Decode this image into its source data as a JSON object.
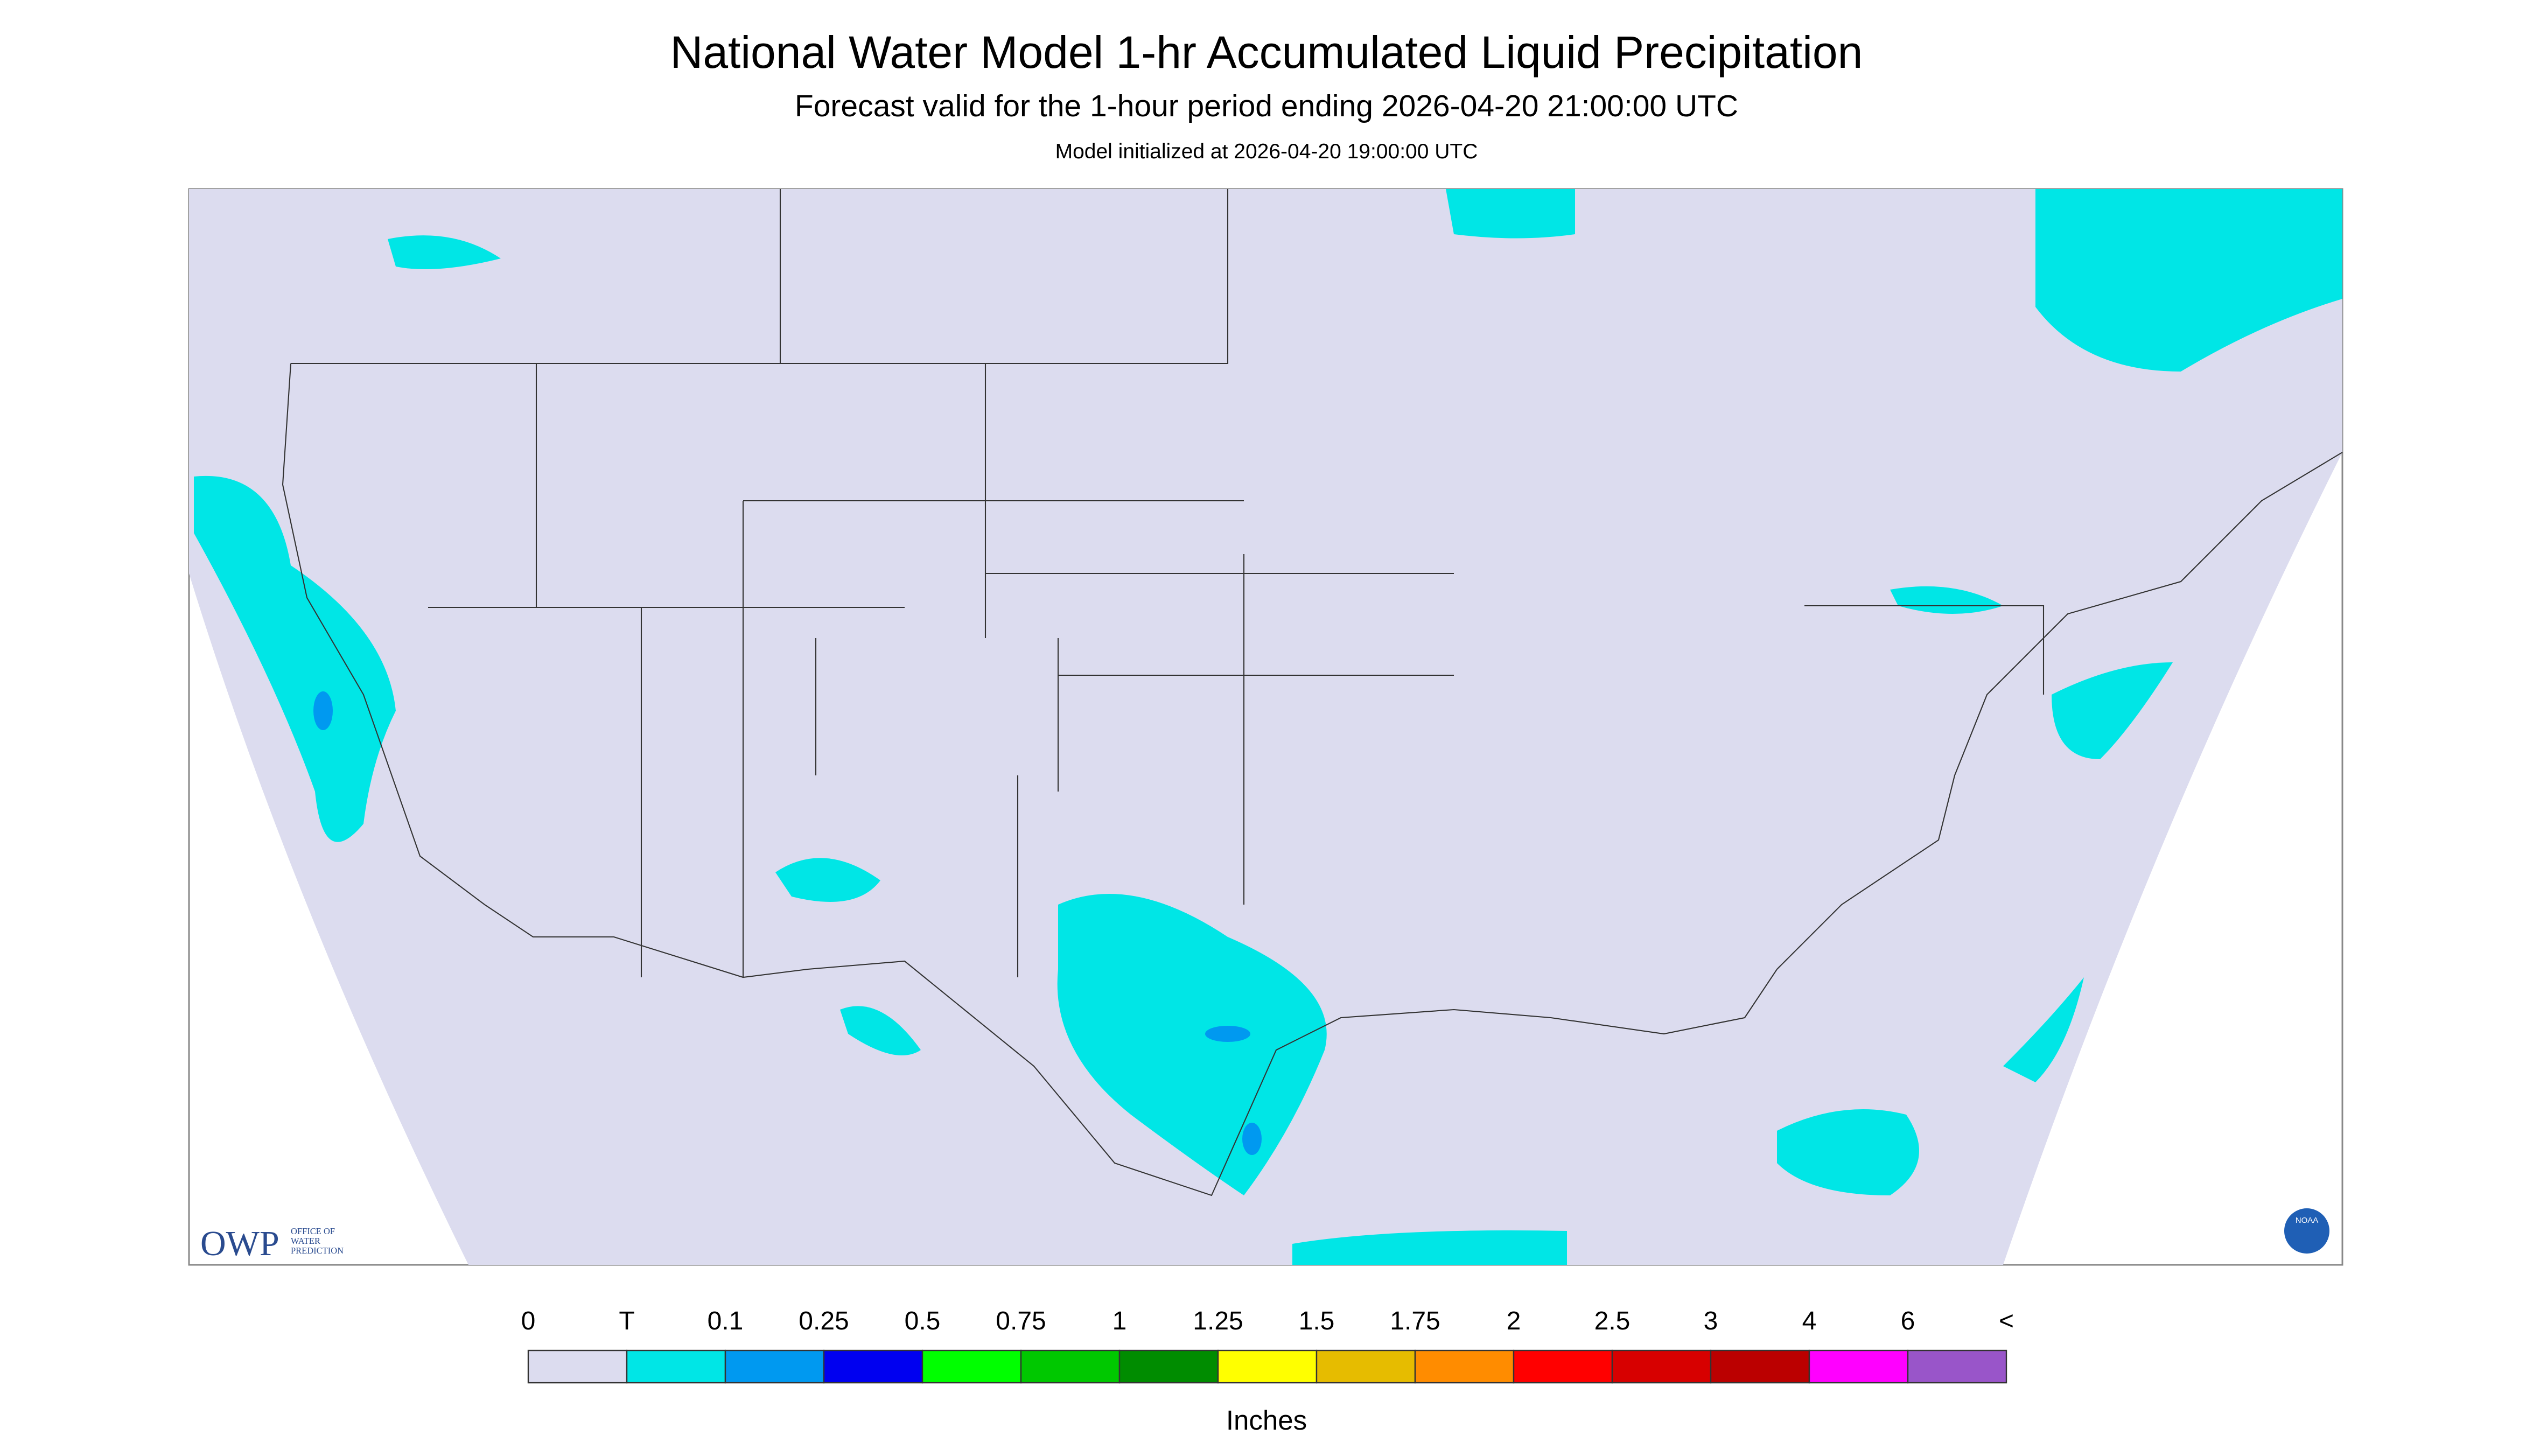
{
  "header": {
    "title": "National Water Model 1-hr Accumulated Liquid Precipitation",
    "subtitle": "Forecast valid for the 1-hour period ending 2026-04-20 21:00:00 UTC",
    "init": "Model initialized at 2026-04-20 19:00:00 UTC"
  },
  "legend": {
    "labels": [
      "0",
      "T",
      "0.1",
      "0.25",
      "0.5",
      "0.75",
      "1",
      "1.25",
      "1.5",
      "1.75",
      "2",
      "2.5",
      "3",
      "4",
      "6",
      "<"
    ],
    "colors": [
      "#dcdcef",
      "#00e6e6",
      "#0099f0",
      "#0000f0",
      "#00ff00",
      "#00c800",
      "#008c00",
      "#ffff00",
      "#e6bc00",
      "#ff8c00",
      "#ff0000",
      "#d70000",
      "#bb0000",
      "#ff00ff",
      "#9955c9"
    ],
    "unit": "Inches"
  },
  "logo": {
    "acronym": "OWP",
    "lines": [
      "OFFICE OF",
      "WATER",
      "PREDICTION"
    ],
    "agency": "NOAA"
  }
}
